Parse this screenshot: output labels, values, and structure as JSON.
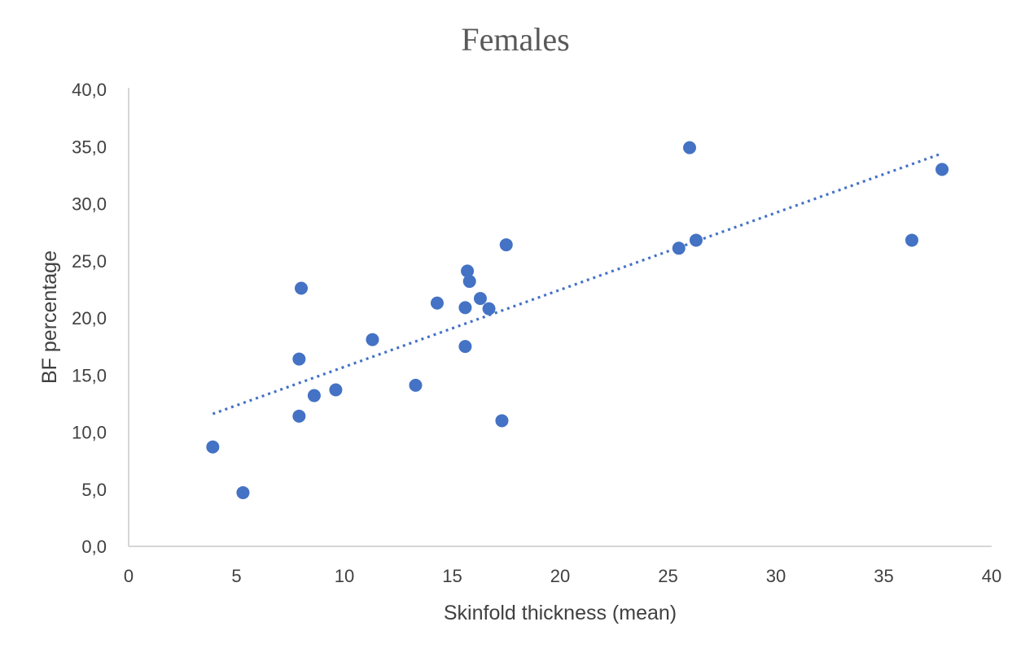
{
  "chart_data": {
    "type": "scatter",
    "title": "Females",
    "xlabel": "Skinfold thickness (mean)",
    "ylabel": "BF percentage",
    "xlim": [
      0,
      40
    ],
    "ylim": [
      0,
      40
    ],
    "x_ticks": [
      "0",
      "5",
      "10",
      "15",
      "20",
      "25",
      "30",
      "35",
      "40"
    ],
    "y_ticks": [
      "0,0",
      "5,0",
      "10,0",
      "15,0",
      "20,0",
      "25,0",
      "30,0",
      "35,0",
      "40,0"
    ],
    "grid": false,
    "legend": "none",
    "series": [
      {
        "color": "#4472c4",
        "marker": "circle",
        "points": [
          {
            "x": 3.9,
            "y": 8.7
          },
          {
            "x": 5.3,
            "y": 4.7
          },
          {
            "x": 7.9,
            "y": 11.4
          },
          {
            "x": 7.9,
            "y": 16.4
          },
          {
            "x": 8.0,
            "y": 22.6
          },
          {
            "x": 8.6,
            "y": 13.2
          },
          {
            "x": 9.6,
            "y": 13.7
          },
          {
            "x": 11.3,
            "y": 18.1
          },
          {
            "x": 13.3,
            "y": 14.1
          },
          {
            "x": 14.3,
            "y": 21.3
          },
          {
            "x": 15.6,
            "y": 20.9
          },
          {
            "x": 15.6,
            "y": 17.5
          },
          {
            "x": 15.7,
            "y": 24.1
          },
          {
            "x": 15.8,
            "y": 23.2
          },
          {
            "x": 16.3,
            "y": 21.7
          },
          {
            "x": 16.7,
            "y": 20.8
          },
          {
            "x": 17.3,
            "y": 11.0
          },
          {
            "x": 17.5,
            "y": 26.4
          },
          {
            "x": 25.5,
            "y": 26.1
          },
          {
            "x": 26.0,
            "y": 34.9
          },
          {
            "x": 26.3,
            "y": 26.8
          },
          {
            "x": 36.3,
            "y": 26.8
          },
          {
            "x": 37.7,
            "y": 33.0
          }
        ]
      }
    ],
    "trendline": {
      "type": "linear",
      "color": "#4472c4",
      "style": "dotted",
      "from": {
        "x": 3.9,
        "y": 11.6
      },
      "to": {
        "x": 37.7,
        "y": 34.4
      }
    }
  }
}
